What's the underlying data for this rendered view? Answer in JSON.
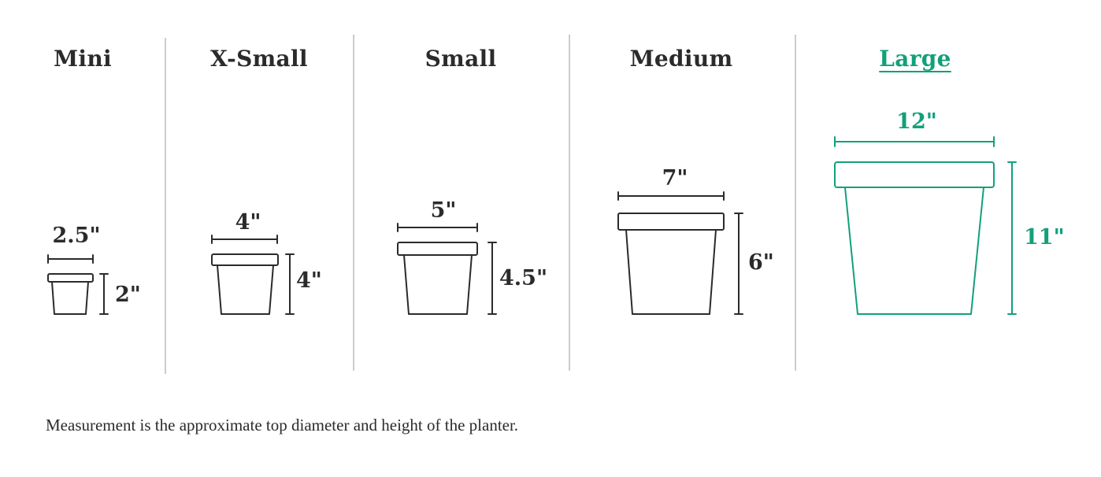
{
  "accent": "#12a07a",
  "ink": "#2b2b2b",
  "selected": "Large",
  "sizes": [
    {
      "name": "Mini",
      "diameter": "2.5\"",
      "height": "2\""
    },
    {
      "name": "X-Small",
      "diameter": "4\"",
      "height": "4\""
    },
    {
      "name": "Small",
      "diameter": "5\"",
      "height": "4.5\""
    },
    {
      "name": "Medium",
      "diameter": "7\"",
      "height": "6\""
    },
    {
      "name": "Large",
      "diameter": "12\"",
      "height": "11\""
    }
  ],
  "note": "Measurement is the approximate top diameter and height of the planter."
}
